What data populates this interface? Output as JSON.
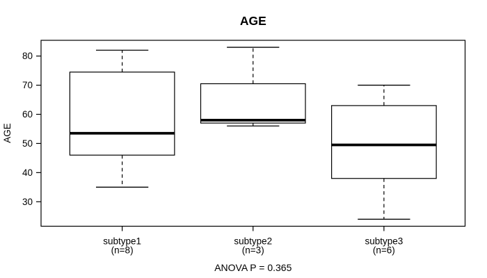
{
  "chart_data": {
    "type": "boxplot",
    "title": "AGE",
    "ylabel": "AGE",
    "xlabel": "",
    "footer": "ANOVA P = 0.365",
    "categories": [
      "subtype1",
      "subtype2",
      "subtype3"
    ],
    "category_sublabels": [
      "(n=8)",
      "(n=3)",
      "(n=6)"
    ],
    "sample_sizes": [
      8,
      3,
      6
    ],
    "yticks": [
      30,
      40,
      50,
      60,
      70,
      80
    ],
    "ylim": [
      21.6,
      85.4
    ],
    "xlim": [
      0.38,
      3.62
    ],
    "grid": false,
    "legend": null,
    "box_width": 0.8,
    "cap_width": 0.4,
    "series": [
      {
        "name": "subtype1",
        "x": 1,
        "n": 8,
        "whisker_low": 35,
        "q1": 46,
        "median": 53.5,
        "q3": 74.5,
        "whisker_high": 82,
        "outliers": []
      },
      {
        "name": "subtype2",
        "x": 2,
        "n": 3,
        "whisker_low": 56,
        "q1": 57,
        "median": 58,
        "q3": 70.5,
        "whisker_high": 83,
        "outliers": []
      },
      {
        "name": "subtype3",
        "x": 3,
        "n": 6,
        "whisker_low": 24,
        "q1": 38,
        "median": 49.5,
        "q3": 63,
        "whisker_high": 70,
        "outliers": []
      }
    ],
    "colors": {
      "line": "#000000",
      "box_fill": "#ffffff",
      "background": "#ffffff",
      "text": "#000000"
    }
  }
}
